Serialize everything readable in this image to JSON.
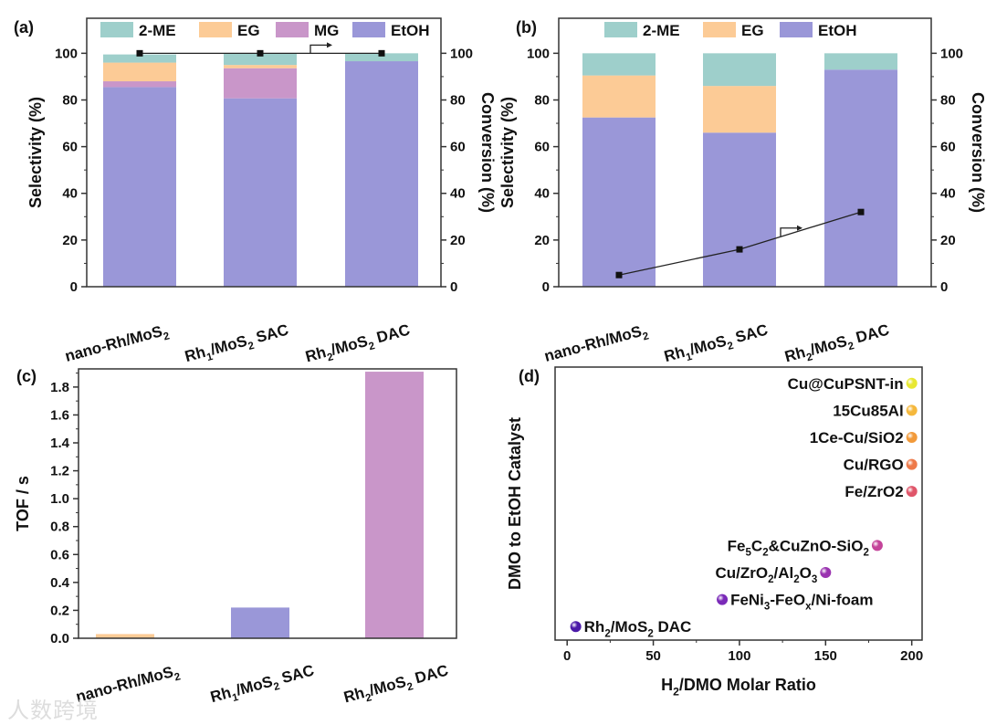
{
  "colors": {
    "2-ME": "#9ecfcb",
    "EG": "#fccb96",
    "MG": "#c996c9",
    "EtOH": "#9a97d8"
  },
  "watermark": "人数跨境",
  "chart_data": [
    {
      "panel": "(a)",
      "type": "bar",
      "stacked": true,
      "categories": [
        [
          [
            "nano-Rh/MoS",
            0
          ],
          [
            "2",
            1
          ]
        ],
        [
          [
            "Rh",
            0
          ],
          [
            "1",
            1
          ],
          [
            "/MoS",
            0
          ],
          [
            "2",
            1
          ],
          [
            " SAC",
            0
          ]
        ],
        [
          [
            "Rh",
            0
          ],
          [
            "2",
            1
          ],
          [
            "/MoS",
            0
          ],
          [
            "2",
            1
          ],
          [
            " DAC",
            0
          ]
        ]
      ],
      "category_text": [
        "nano-Rh/MoS2",
        "Rh1/MoS2 SAC",
        "Rh2/MoS2 DAC"
      ],
      "ylabel": "Selectivity (%)",
      "y2label": "Conversion (%)",
      "ylim": [
        0,
        115
      ],
      "y2lim": [
        0,
        115
      ],
      "yticks": [
        0,
        20,
        40,
        60,
        80,
        100
      ],
      "legend": [
        "2-ME",
        "EG",
        "MG",
        "EtOH"
      ],
      "series": [
        {
          "name": "EtOH",
          "values": [
            85.5,
            80.7,
            96.6
          ]
        },
        {
          "name": "MG",
          "values": [
            2.5,
            12.9,
            0
          ]
        },
        {
          "name": "EG",
          "values": [
            8,
            1.4,
            0
          ]
        },
        {
          "name": "2-ME",
          "values": [
            3.5,
            5,
            3.4
          ]
        }
      ],
      "conversion": [
        100,
        100,
        100
      ]
    },
    {
      "panel": "(b)",
      "type": "bar",
      "stacked": true,
      "categories": [
        [
          [
            "nano-Rh/MoS",
            0
          ],
          [
            "2",
            1
          ]
        ],
        [
          [
            "Rh",
            0
          ],
          [
            "1",
            1
          ],
          [
            "/MoS",
            0
          ],
          [
            "2",
            1
          ],
          [
            " SAC",
            0
          ]
        ],
        [
          [
            "Rh",
            0
          ],
          [
            "2",
            1
          ],
          [
            "/MoS",
            0
          ],
          [
            "2",
            1
          ],
          [
            " DAC",
            0
          ]
        ]
      ],
      "category_text": [
        "nano-Rh/MoS2",
        "Rh1/MoS2 SAC",
        "Rh2/MoS2 DAC"
      ],
      "ylabel": "Selectivity (%)",
      "y2label": "Conversion (%)",
      "ylim": [
        0,
        115
      ],
      "y2lim": [
        0,
        115
      ],
      "yticks": [
        0,
        20,
        40,
        60,
        80,
        100
      ],
      "legend": [
        "2-ME",
        "EG",
        "EtOH"
      ],
      "series": [
        {
          "name": "EtOH",
          "values": [
            72.5,
            66,
            93
          ]
        },
        {
          "name": "EG",
          "values": [
            18,
            20,
            0
          ]
        },
        {
          "name": "2-ME",
          "values": [
            9.5,
            14,
            7
          ]
        }
      ],
      "conversion": [
        5,
        16,
        32
      ]
    },
    {
      "panel": "(c)",
      "type": "bar",
      "categories": [
        [
          [
            "nano-Rh/MoS",
            0
          ],
          [
            "2",
            1
          ]
        ],
        [
          [
            "Rh",
            0
          ],
          [
            "1",
            1
          ],
          [
            "/MoS",
            0
          ],
          [
            "2",
            1
          ],
          [
            " SAC",
            0
          ]
        ],
        [
          [
            "Rh",
            0
          ],
          [
            "2",
            1
          ],
          [
            "/MoS",
            0
          ],
          [
            "2",
            1
          ],
          [
            " DAC",
            0
          ]
        ]
      ],
      "category_text": [
        "nano-Rh/MoS2",
        "Rh1/MoS2 SAC",
        "Rh2/MoS2 DAC"
      ],
      "ylabel": "TOF / s",
      "ylim": [
        0,
        1.93
      ],
      "yticks": [
        "0.0",
        "0.2",
        "0.4",
        "0.6",
        "0.8",
        "1.0",
        "1.2",
        "1.4",
        "1.6",
        "1.8"
      ],
      "values": [
        0.03,
        0.22,
        1.91
      ],
      "bar_colors": [
        "#fccb96",
        "#9a97d8",
        "#c996c9"
      ]
    },
    {
      "panel": "(d)",
      "type": "scatter",
      "xlabel_parts": [
        [
          "H",
          0
        ],
        [
          "2",
          1
        ],
        [
          "/DMO Molar Ratio",
          0
        ]
      ],
      "xlabel": "H2/DMO Molar Ratio",
      "ylabel": "DMO to EtOH Catalyst",
      "xlim": [
        -7,
        206
      ],
      "ylim": [
        0.5,
        10.6
      ],
      "xticks": [
        0,
        50,
        100,
        150,
        200
      ],
      "points": [
        {
          "label": [
            [
              "Rh",
              0
            ],
            [
              "2",
              1
            ],
            [
              "/MoS",
              0
            ],
            [
              "2",
              1
            ],
            [
              " DAC",
              0
            ]
          ],
          "text": "Rh2/MoS2 DAC",
          "x": 5,
          "rank": 1,
          "color": "#4b1aa8",
          "side": "right"
        },
        {
          "label": [
            [
              "FeNi",
              0
            ],
            [
              "3",
              1
            ],
            [
              "-FeO",
              0
            ],
            [
              "x",
              1
            ],
            [
              "/Ni-foam",
              0
            ]
          ],
          "text": "FeNi3-FeOx/Ni-foam",
          "x": 90,
          "rank": 2,
          "color": "#7a2ab8",
          "side": "right"
        },
        {
          "label": [
            [
              "Cu/ZrO",
              0
            ],
            [
              "2",
              1
            ],
            [
              "/Al",
              0
            ],
            [
              "2",
              1
            ],
            [
              "O",
              0
            ],
            [
              "3",
              1
            ]
          ],
          "text": "Cu/ZrO2/Al2O3",
          "x": 150,
          "rank": 3,
          "color": "#9a34b0",
          "side": "left"
        },
        {
          "label": [
            [
              "Fe",
              0
            ],
            [
              "5",
              1
            ],
            [
              "C",
              0
            ],
            [
              "2",
              1
            ],
            [
              "&CuZnO-SiO",
              0
            ],
            [
              "2",
              1
            ]
          ],
          "text": "Fe5C2&CuZnO-SiO2",
          "x": 180,
          "rank": 4,
          "color": "#c4449a",
          "side": "left"
        },
        {
          "label": [
            [
              "Fe/ZrO",
              0
            ],
            [
              "2",
              1
            ]
          ],
          "text": "Fe/ZrO2",
          "x": 200,
          "rank": 6,
          "color": "#e0566a",
          "side": "left"
        },
        {
          "label": [
            [
              "Cu/RGO",
              0
            ]
          ],
          "text": "Cu/RGO",
          "x": 200,
          "rank": 7,
          "color": "#ee7a4a",
          "side": "left"
        },
        {
          "label": [
            [
              "1Ce-Cu/SiO",
              0
            ],
            [
              "2",
              1
            ]
          ],
          "text": "1Ce-Cu/SiO2",
          "x": 200,
          "rank": 8,
          "color": "#f29a3a",
          "side": "left"
        },
        {
          "label": [
            [
              "15Cu85Al",
              0
            ]
          ],
          "text": "15Cu85Al",
          "x": 200,
          "rank": 9,
          "color": "#f5b83c",
          "side": "left"
        },
        {
          "label": [
            [
              "Cu@CuPSNT-in",
              0
            ]
          ],
          "text": "Cu@CuPSNT-in",
          "x": 200,
          "rank": 10,
          "color": "#e8e832",
          "side": "left"
        }
      ]
    }
  ]
}
